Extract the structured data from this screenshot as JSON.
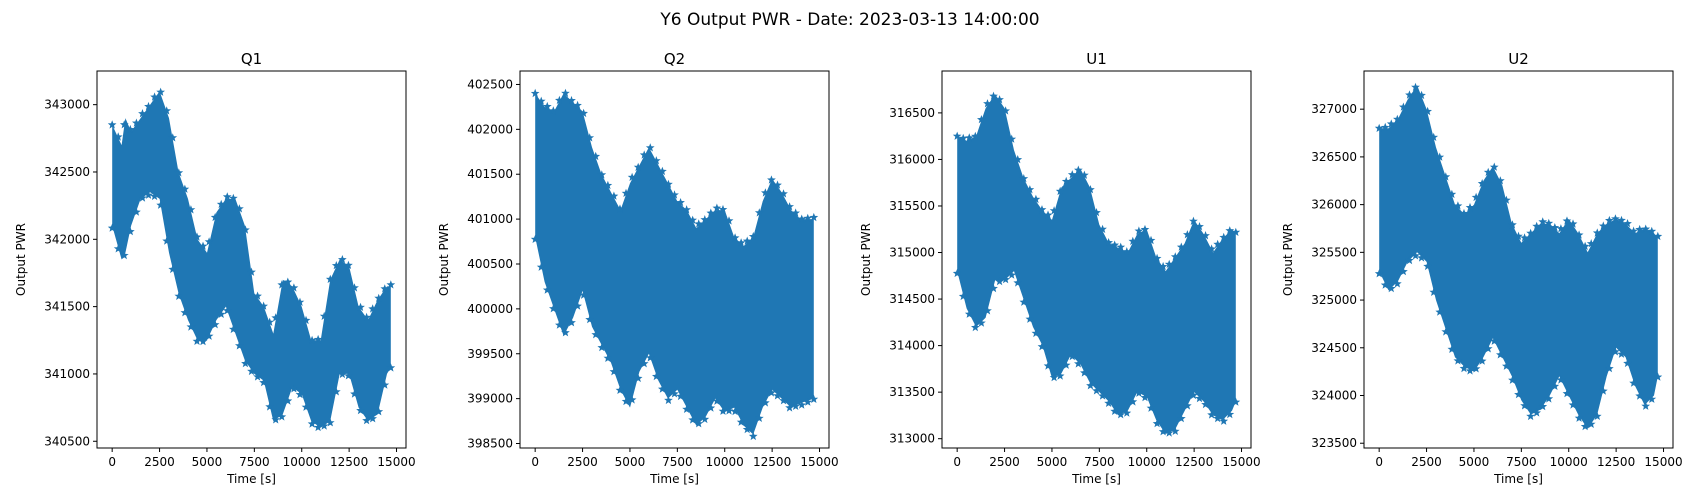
{
  "figure": {
    "title": "Y6 Output PWR - Date: 2023-03-13 14:00:00"
  },
  "colors": {
    "series": "#1f77b4",
    "axes": "#000000",
    "background": "#ffffff"
  },
  "chart_data": [
    {
      "type": "scatter",
      "marker": "star",
      "title": "Q1",
      "xlabel": "Time [s]",
      "ylabel": "Output PWR",
      "xlim": [
        -800,
        15500
      ],
      "ylim": [
        340450,
        343250
      ],
      "xticks": [
        0,
        2500,
        5000,
        7500,
        10000,
        12500,
        15000
      ],
      "yticks": [
        340500,
        341000,
        341500,
        342000,
        342500,
        343000
      ],
      "grid": false,
      "envelope": {
        "x": [
          0,
          500,
          700,
          1000,
          1500,
          2000,
          2500,
          3000,
          3500,
          4000,
          4500,
          5000,
          5500,
          6000,
          6500,
          7000,
          7500,
          8000,
          8500,
          9000,
          9500,
          10000,
          10500,
          11000,
          11500,
          12000,
          12500,
          13000,
          13500,
          14000,
          14500,
          14700
        ],
        "upper": [
          342850,
          342700,
          342900,
          342800,
          342900,
          343000,
          343100,
          342900,
          342500,
          342300,
          342000,
          341900,
          342200,
          342300,
          342300,
          342100,
          341600,
          341500,
          341300,
          341700,
          341650,
          341500,
          341250,
          341250,
          341700,
          341850,
          341800,
          341500,
          341400,
          341550,
          341650,
          341650
        ],
        "lower": [
          342100,
          341850,
          341900,
          342100,
          342300,
          342350,
          342300,
          341900,
          341600,
          341400,
          341250,
          341250,
          341400,
          341500,
          341300,
          341100,
          341000,
          340950,
          340650,
          340700,
          340900,
          340850,
          340650,
          340600,
          340650,
          341000,
          341000,
          340750,
          340650,
          340700,
          341000,
          341050
        ]
      }
    },
    {
      "type": "scatter",
      "marker": "star",
      "title": "Q2",
      "xlabel": "Time [s]",
      "ylabel": "Output PWR",
      "xlim": [
        -800,
        15500
      ],
      "ylim": [
        398450,
        402650
      ],
      "xticks": [
        0,
        2500,
        5000,
        7500,
        10000,
        12500,
        15000
      ],
      "yticks": [
        398500,
        399000,
        399500,
        400000,
        400500,
        401000,
        401500,
        402000,
        402500
      ],
      "grid": false,
      "envelope": {
        "x": [
          0,
          500,
          1000,
          1500,
          2000,
          2500,
          3000,
          3500,
          4000,
          4500,
          5000,
          5500,
          6000,
          6500,
          7000,
          7500,
          8000,
          8500,
          9000,
          9500,
          10000,
          10500,
          11000,
          11500,
          12000,
          12500,
          13000,
          13500,
          14000,
          14700
        ],
        "upper": [
          402400,
          402250,
          402200,
          402400,
          402300,
          402200,
          401800,
          401500,
          401300,
          401100,
          401400,
          401600,
          401800,
          401600,
          401400,
          401200,
          401100,
          400900,
          401000,
          401100,
          401100,
          400800,
          400700,
          400800,
          401200,
          401450,
          401300,
          401100,
          401000,
          401000
        ],
        "lower": [
          400800,
          400300,
          400000,
          399700,
          399900,
          400200,
          399800,
          399600,
          399400,
          399100,
          398900,
          399300,
          399500,
          399200,
          399000,
          399100,
          398900,
          398700,
          398800,
          399000,
          398850,
          398900,
          398700,
          398600,
          398900,
          399100,
          399000,
          398900,
          398950,
          399000
        ]
      }
    },
    {
      "type": "scatter",
      "marker": "star",
      "title": "U1",
      "xlabel": "Time [s]",
      "ylabel": "Output PWR",
      "xlim": [
        -800,
        15500
      ],
      "ylim": [
        312900,
        316950
      ],
      "xticks": [
        0,
        2500,
        5000,
        7500,
        10000,
        12500,
        15000
      ],
      "yticks": [
        313000,
        313500,
        314000,
        314500,
        315000,
        315500,
        316000,
        316500
      ],
      "grid": false,
      "envelope": {
        "x": [
          0,
          500,
          1000,
          1500,
          2000,
          2500,
          3000,
          3500,
          4000,
          4500,
          5000,
          5500,
          6000,
          6500,
          7000,
          7500,
          8000,
          8500,
          9000,
          9500,
          10000,
          10500,
          11000,
          11500,
          12000,
          12500,
          13000,
          13500,
          14000,
          14500,
          14700
        ],
        "upper": [
          316250,
          316200,
          316250,
          316550,
          316700,
          316550,
          316100,
          315800,
          315600,
          315450,
          315350,
          315700,
          315800,
          315900,
          315700,
          315300,
          315100,
          315050,
          315000,
          315200,
          315250,
          314950,
          314800,
          314950,
          315100,
          315350,
          315200,
          315000,
          315150,
          315250,
          315200
        ],
        "lower": [
          314800,
          314400,
          314200,
          314300,
          314700,
          314700,
          314800,
          314500,
          314200,
          314000,
          313650,
          313700,
          313900,
          313800,
          313600,
          313500,
          313400,
          313250,
          313300,
          313500,
          313450,
          313200,
          313050,
          313100,
          313300,
          313500,
          313400,
          313250,
          313200,
          313300,
          313400
        ]
      }
    },
    {
      "type": "scatter",
      "marker": "star",
      "title": "U2",
      "xlabel": "Time [s]",
      "ylabel": "Output PWR",
      "xlim": [
        -800,
        15500
      ],
      "ylim": [
        323450,
        327400
      ],
      "xticks": [
        0,
        2500,
        5000,
        7500,
        10000,
        12500,
        15000
      ],
      "yticks": [
        323500,
        324000,
        324500,
        325000,
        325500,
        326000,
        326500,
        327000
      ],
      "grid": false,
      "envelope": {
        "x": [
          0,
          500,
          1000,
          1500,
          2000,
          2500,
          3000,
          3500,
          4000,
          4500,
          5000,
          5500,
          6000,
          6500,
          7000,
          7500,
          8000,
          8500,
          9000,
          9500,
          10000,
          10500,
          11000,
          11500,
          12000,
          12500,
          13000,
          13500,
          14000,
          14500,
          14700
        ],
        "upper": [
          326800,
          326800,
          326900,
          327100,
          327250,
          327000,
          326600,
          326300,
          326000,
          325900,
          326000,
          326250,
          326400,
          326200,
          325800,
          325600,
          325700,
          325800,
          325800,
          325700,
          325850,
          325700,
          325500,
          325700,
          325800,
          325850,
          325800,
          325700,
          325750,
          325700,
          325650
        ],
        "lower": [
          325300,
          325100,
          325200,
          325400,
          325500,
          325400,
          325000,
          324700,
          324400,
          324300,
          324250,
          324400,
          324600,
          324400,
          324200,
          323950,
          323800,
          323850,
          324000,
          324200,
          324000,
          323800,
          323650,
          323800,
          324200,
          324500,
          324400,
          324100,
          323900,
          324000,
          324200
        ]
      }
    }
  ]
}
